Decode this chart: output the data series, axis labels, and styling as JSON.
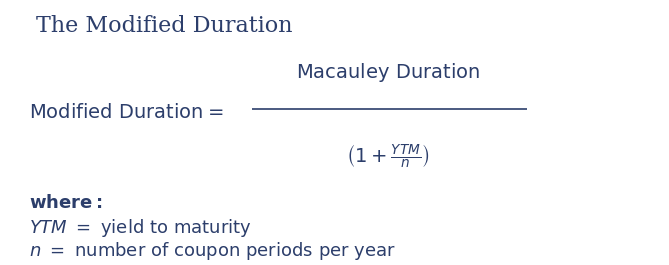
{
  "title": "The Modified Duration",
  "bg_color": "#ffffff",
  "text_color": "#2c3e6b",
  "title_fontsize": 16,
  "formula_fontsize": 14,
  "where_fontsize": 13,
  "body_fontsize": 13
}
